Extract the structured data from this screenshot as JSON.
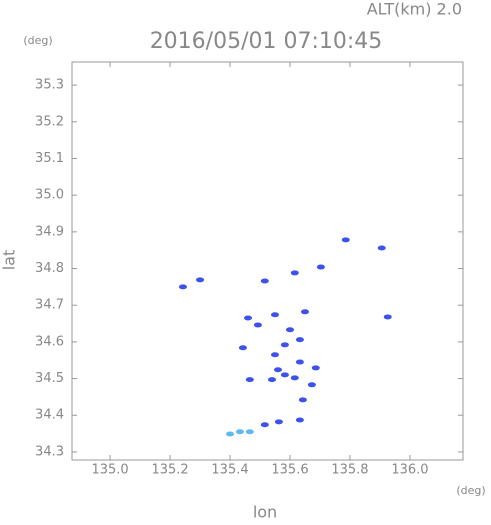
{
  "chart_data": {
    "type": "scatter",
    "title": "2016/05/01 07:10:45",
    "subtitle": "ALT(km) 2.0",
    "x_label": "lon",
    "y_label": "lat",
    "x_unit": "(deg)",
    "y_unit": "(deg)",
    "xlim": [
      134.873,
      136.177
    ],
    "ylim": [
      34.278,
      35.363
    ],
    "xticks": [
      {
        "value": 135.0,
        "label": "135.0"
      },
      135.2,
      135.4,
      135.6,
      135.8,
      {
        "value": 136.0,
        "label": "136.0"
      }
    ],
    "yticks": [
      34.3,
      34.4,
      34.5,
      34.6,
      34.7,
      34.8,
      34.9,
      {
        "value": 35.0,
        "label": "35.0"
      },
      35.1,
      35.2,
      35.3
    ],
    "series": [
      {
        "color": "#3d52ea",
        "x": [
          135.243,
          135.3,
          135.516,
          135.616,
          135.703,
          135.786,
          135.906,
          135.926,
          135.46,
          135.493,
          135.55,
          135.65,
          135.6,
          135.583,
          135.633,
          135.443,
          135.55,
          135.56,
          135.54,
          135.583,
          135.616,
          135.466,
          135.673,
          135.686,
          135.643,
          135.633,
          135.563,
          135.516,
          135.633
        ],
        "values": [
          34.75,
          34.769,
          34.766,
          34.788,
          34.804,
          34.878,
          34.856,
          34.668,
          34.665,
          34.646,
          34.674,
          34.682,
          34.633,
          34.592,
          34.606,
          34.584,
          34.565,
          34.524,
          34.497,
          34.51,
          34.502,
          34.497,
          34.483,
          34.529,
          34.442,
          34.387,
          34.382,
          34.374,
          34.545
        ]
      },
      {
        "color": "#5fb8f0",
        "x": [
          135.4,
          135.433,
          135.466
        ],
        "values": [
          34.349,
          34.355,
          34.355
        ]
      }
    ]
  }
}
